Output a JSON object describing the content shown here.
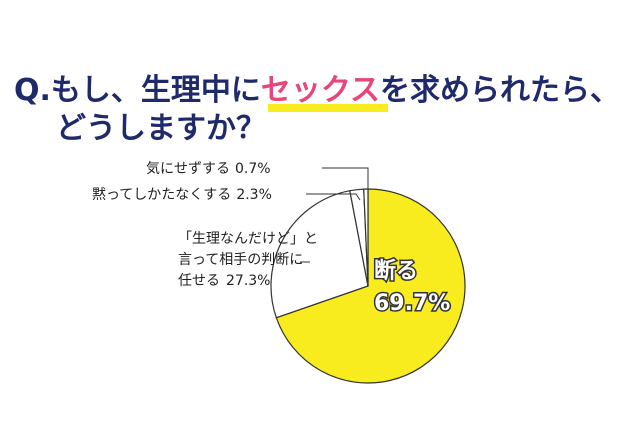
{
  "chart_data": {
    "type": "pie",
    "title": [
      "Q.もし、生理中に",
      "セックス",
      "を求められたら、",
      "どうしますか？"
    ],
    "categories": [
      "断る",
      "「生理なんだけど」と\n言って相手の判断に\n任せる",
      "黙ってしかたなくする",
      "気にせずする"
    ],
    "values": [
      69.7,
      27.3,
      2.3,
      0.7
    ],
    "value_labels": [
      "69.7%",
      "27.3%",
      "2.3%",
      "0.7%"
    ],
    "colors": [
      "#f8ec1e",
      "#ffffff",
      "#ffffff",
      "#ffffff"
    ]
  }
}
